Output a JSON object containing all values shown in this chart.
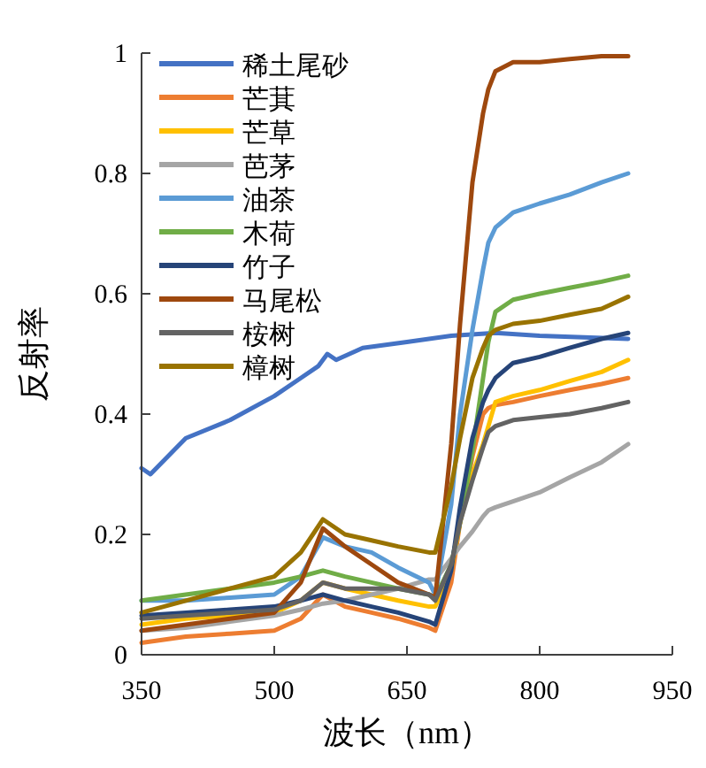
{
  "chart_data": {
    "type": "line",
    "xlabel": "波长（nm）",
    "ylabel": "反射率",
    "xlim": [
      350,
      950
    ],
    "xticks": [
      350,
      500,
      650,
      800,
      950
    ],
    "ylim": [
      0,
      1
    ],
    "yticks": [
      0,
      0.2,
      0.4,
      0.6,
      0.8,
      1
    ],
    "grid": false,
    "legend": "top left",
    "marker": "none",
    "line_style": "solid",
    "series": [
      {
        "name": "稀土尾砂",
        "color": "#4472c4",
        "x": [
          350,
          360,
          400,
          450,
          500,
          530,
          550,
          560,
          570,
          600,
          650,
          700,
          750,
          800,
          900
        ],
        "values": [
          0.31,
          0.3,
          0.36,
          0.39,
          0.43,
          0.46,
          0.48,
          0.5,
          0.49,
          0.51,
          0.52,
          0.53,
          0.535,
          0.53,
          0.525
        ]
      },
      {
        "name": "芒萁",
        "color": "#ed7d31",
        "x": [
          350,
          400,
          450,
          500,
          530,
          555,
          580,
          610,
          640,
          675,
          682,
          700,
          710,
          724,
          736,
          742,
          750,
          770,
          800,
          834,
          870,
          900
        ],
        "values": [
          0.02,
          0.03,
          0.035,
          0.04,
          0.06,
          0.1,
          0.08,
          0.07,
          0.06,
          0.045,
          0.04,
          0.12,
          0.22,
          0.33,
          0.4,
          0.41,
          0.415,
          0.42,
          0.43,
          0.44,
          0.45,
          0.46
        ]
      },
      {
        "name": "芒草",
        "color": "#ffc000",
        "x": [
          350,
          400,
          450,
          500,
          530,
          555,
          580,
          610,
          640,
          675,
          682,
          700,
          710,
          724,
          736,
          742,
          750,
          770,
          800,
          834,
          870,
          900
        ],
        "values": [
          0.05,
          0.06,
          0.065,
          0.07,
          0.09,
          0.12,
          0.11,
          0.1,
          0.09,
          0.08,
          0.08,
          0.14,
          0.22,
          0.3,
          0.35,
          0.38,
          0.42,
          0.43,
          0.44,
          0.455,
          0.47,
          0.49
        ]
      },
      {
        "name": "芭茅",
        "color": "#a5a5a5",
        "x": [
          350,
          400,
          450,
          500,
          530,
          555,
          580,
          610,
          640,
          675,
          682,
          700,
          710,
          724,
          736,
          742,
          750,
          770,
          800,
          834,
          870,
          900
        ],
        "values": [
          0.04,
          0.045,
          0.055,
          0.065,
          0.075,
          0.085,
          0.09,
          0.1,
          0.11,
          0.125,
          0.125,
          0.16,
          0.18,
          0.205,
          0.23,
          0.24,
          0.245,
          0.255,
          0.27,
          0.295,
          0.32,
          0.35
        ]
      },
      {
        "name": "油茶",
        "color": "#5b9bd5",
        "x": [
          350,
          400,
          450,
          500,
          530,
          555,
          580,
          610,
          640,
          675,
          682,
          700,
          710,
          724,
          736,
          742,
          750,
          770,
          800,
          834,
          870,
          900
        ],
        "values": [
          0.09,
          0.09,
          0.095,
          0.1,
          0.13,
          0.195,
          0.18,
          0.17,
          0.145,
          0.12,
          0.1,
          0.25,
          0.4,
          0.54,
          0.64,
          0.685,
          0.71,
          0.735,
          0.75,
          0.765,
          0.785,
          0.8
        ]
      },
      {
        "name": "木荷",
        "color": "#70ad47",
        "x": [
          350,
          400,
          450,
          500,
          530,
          555,
          580,
          610,
          640,
          675,
          682,
          700,
          710,
          724,
          736,
          742,
          750,
          770,
          800,
          834,
          870,
          900
        ],
        "values": [
          0.09,
          0.1,
          0.11,
          0.12,
          0.13,
          0.14,
          0.13,
          0.12,
          0.11,
          0.1,
          0.095,
          0.15,
          0.22,
          0.34,
          0.46,
          0.52,
          0.57,
          0.59,
          0.6,
          0.61,
          0.62,
          0.63
        ]
      },
      {
        "name": "竹子",
        "color": "#264478",
        "x": [
          350,
          400,
          450,
          500,
          530,
          555,
          580,
          610,
          640,
          675,
          682,
          700,
          710,
          724,
          736,
          742,
          750,
          770,
          800,
          834,
          870,
          900
        ],
        "values": [
          0.065,
          0.07,
          0.075,
          0.08,
          0.09,
          0.1,
          0.09,
          0.08,
          0.07,
          0.055,
          0.05,
          0.14,
          0.245,
          0.36,
          0.42,
          0.44,
          0.46,
          0.485,
          0.495,
          0.51,
          0.525,
          0.535
        ]
      },
      {
        "name": "马尾松",
        "color": "#9e480e",
        "x": [
          350,
          400,
          450,
          500,
          530,
          555,
          580,
          610,
          640,
          675,
          682,
          700,
          710,
          724,
          736,
          742,
          750,
          770,
          800,
          834,
          870,
          900
        ],
        "values": [
          0.04,
          0.05,
          0.06,
          0.07,
          0.12,
          0.21,
          0.18,
          0.15,
          0.12,
          0.1,
          0.095,
          0.35,
          0.55,
          0.785,
          0.9,
          0.94,
          0.97,
          0.985,
          0.985,
          0.99,
          0.995,
          0.995
        ]
      },
      {
        "name": "桉树",
        "color": "#636363",
        "x": [
          350,
          400,
          450,
          500,
          530,
          555,
          580,
          610,
          640,
          675,
          682,
          700,
          710,
          724,
          736,
          742,
          750,
          770,
          800,
          834,
          870,
          900
        ],
        "values": [
          0.06,
          0.065,
          0.07,
          0.075,
          0.09,
          0.12,
          0.11,
          0.11,
          0.11,
          0.1,
          0.09,
          0.15,
          0.22,
          0.29,
          0.345,
          0.37,
          0.38,
          0.39,
          0.395,
          0.4,
          0.41,
          0.42
        ]
      },
      {
        "name": "樟树",
        "color": "#997300",
        "x": [
          350,
          400,
          450,
          500,
          530,
          555,
          580,
          610,
          640,
          675,
          682,
          700,
          710,
          724,
          736,
          742,
          750,
          770,
          800,
          834,
          870,
          900
        ],
        "values": [
          0.07,
          0.09,
          0.11,
          0.13,
          0.17,
          0.225,
          0.2,
          0.19,
          0.18,
          0.17,
          0.17,
          0.28,
          0.36,
          0.46,
          0.51,
          0.53,
          0.54,
          0.55,
          0.555,
          0.565,
          0.575,
          0.595
        ]
      }
    ]
  }
}
